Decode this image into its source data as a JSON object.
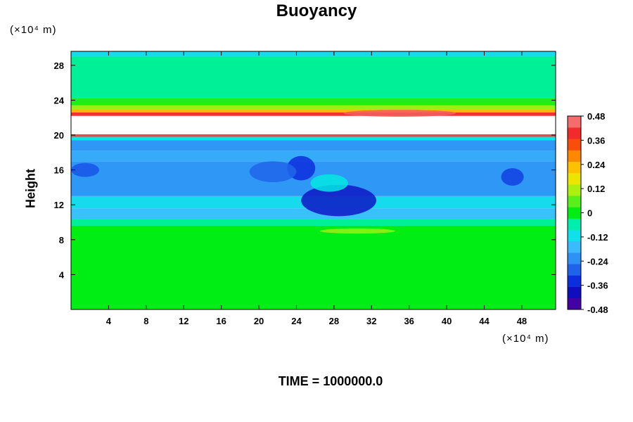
{
  "chart_data": {
    "type": "heatmap",
    "title": "Buoyancy",
    "ylabel": "Height",
    "xlabel": "",
    "y_unit": "(×10⁴ m)",
    "x_unit": "(×10⁴ m)",
    "footer": "TIME = 1000000.0",
    "xlim": [
      0,
      51.6
    ],
    "ylim": [
      0,
      29.6
    ],
    "x_ticks": [
      "4",
      "8",
      "12",
      "16",
      "20",
      "24",
      "28",
      "32",
      "36",
      "40",
      "44",
      "48"
    ],
    "x_tick_values": [
      4,
      8,
      12,
      16,
      20,
      24,
      28,
      32,
      36,
      40,
      44,
      48
    ],
    "y_ticks": [
      "4",
      "8",
      "12",
      "16",
      "20",
      "24",
      "28"
    ],
    "y_tick_values": [
      4,
      8,
      12,
      16,
      20,
      24,
      28
    ],
    "colorbar": {
      "labels": [
        "0.48",
        "0.36",
        "0.24",
        "0.12",
        "0",
        "-0.12",
        "-0.24",
        "-0.36",
        "-0.48"
      ],
      "values": [
        0.48,
        0.36,
        0.24,
        0.12,
        0,
        -0.12,
        -0.24,
        -0.36,
        -0.48
      ],
      "min": -0.48,
      "max": 0.48,
      "levels": 17
    },
    "bands": [
      {
        "y0": 0,
        "y1": 9.6,
        "value": 0.0
      },
      {
        "y0": 9.6,
        "y1": 10.4,
        "value": -0.04
      },
      {
        "y0": 10.4,
        "y1": 11.6,
        "value": -0.16
      },
      {
        "y0": 11.6,
        "y1": 13.0,
        "value": -0.12
      },
      {
        "y0": 13.0,
        "y1": 17.0,
        "value": -0.22
      },
      {
        "y0": 17.0,
        "y1": 18.2,
        "value": -0.19
      },
      {
        "y0": 18.2,
        "y1": 19.4,
        "value": -0.22
      },
      {
        "y0": 19.4,
        "y1": 19.8,
        "value": -0.1
      },
      {
        "y0": 19.8,
        "y1": 20.1,
        "value": 0.42
      },
      {
        "y0": 20.1,
        "y1": 22.2,
        "value": null
      },
      {
        "y0": 22.2,
        "y1": 22.6,
        "value": 0.4
      },
      {
        "y0": 22.6,
        "y1": 22.9,
        "value": 0.24
      },
      {
        "y0": 22.9,
        "y1": 23.4,
        "value": 0.1
      },
      {
        "y0": 23.4,
        "y1": 24.2,
        "value": 0.02
      },
      {
        "y0": 24.2,
        "y1": 29.0,
        "value": -0.04
      },
      {
        "y0": 29.0,
        "y1": 29.6,
        "value": -0.12
      }
    ],
    "anomalies": [
      {
        "x": 24.5,
        "y": 16.2,
        "rx": 1.5,
        "ry": 1.4,
        "value": -0.34
      },
      {
        "x": 28.5,
        "y": 12.5,
        "rx": 4.0,
        "ry": 1.8,
        "value": -0.38
      },
      {
        "x": 21.5,
        "y": 15.8,
        "rx": 2.5,
        "ry": 1.2,
        "value": -0.28
      },
      {
        "x": 1.5,
        "y": 16.0,
        "rx": 1.5,
        "ry": 0.8,
        "value": -0.3
      },
      {
        "x": 47.0,
        "y": 15.2,
        "rx": 1.2,
        "ry": 1.0,
        "value": -0.32
      },
      {
        "x": 27.5,
        "y": 14.5,
        "rx": 2.0,
        "ry": 1.0,
        "value": -0.1
      },
      {
        "x": 35.0,
        "y": 22.5,
        "rx": 6.0,
        "ry": 0.4,
        "value": 0.44
      },
      {
        "x": 30.5,
        "y": 9.0,
        "rx": 4.0,
        "ry": 0.3,
        "value": 0.1
      }
    ]
  }
}
